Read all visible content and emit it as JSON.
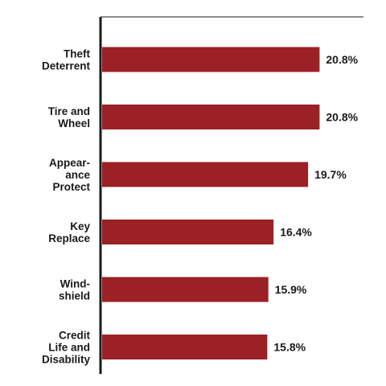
{
  "chart_data": {
    "type": "bar",
    "orientation": "horizontal",
    "categories": [
      [
        "Theft",
        "Deterrent"
      ],
      [
        "Tire and",
        "Wheel"
      ],
      [
        "Appear-",
        "ance",
        "Protect"
      ],
      [
        "Key",
        "Replace"
      ],
      [
        "Wind-",
        "shield"
      ],
      [
        "Credit",
        "Life and",
        "Disability"
      ]
    ],
    "values": [
      20.8,
      20.8,
      19.7,
      16.4,
      15.9,
      15.8
    ],
    "value_labels": [
      "20.8%",
      "20.8%",
      "19.7%",
      "16.4%",
      "15.9%",
      "15.8%"
    ],
    "xlim": [
      0,
      25
    ],
    "bar_color": "#9b2126",
    "axis_color": "#1a1a1a",
    "grid": false,
    "legend": "none"
  }
}
